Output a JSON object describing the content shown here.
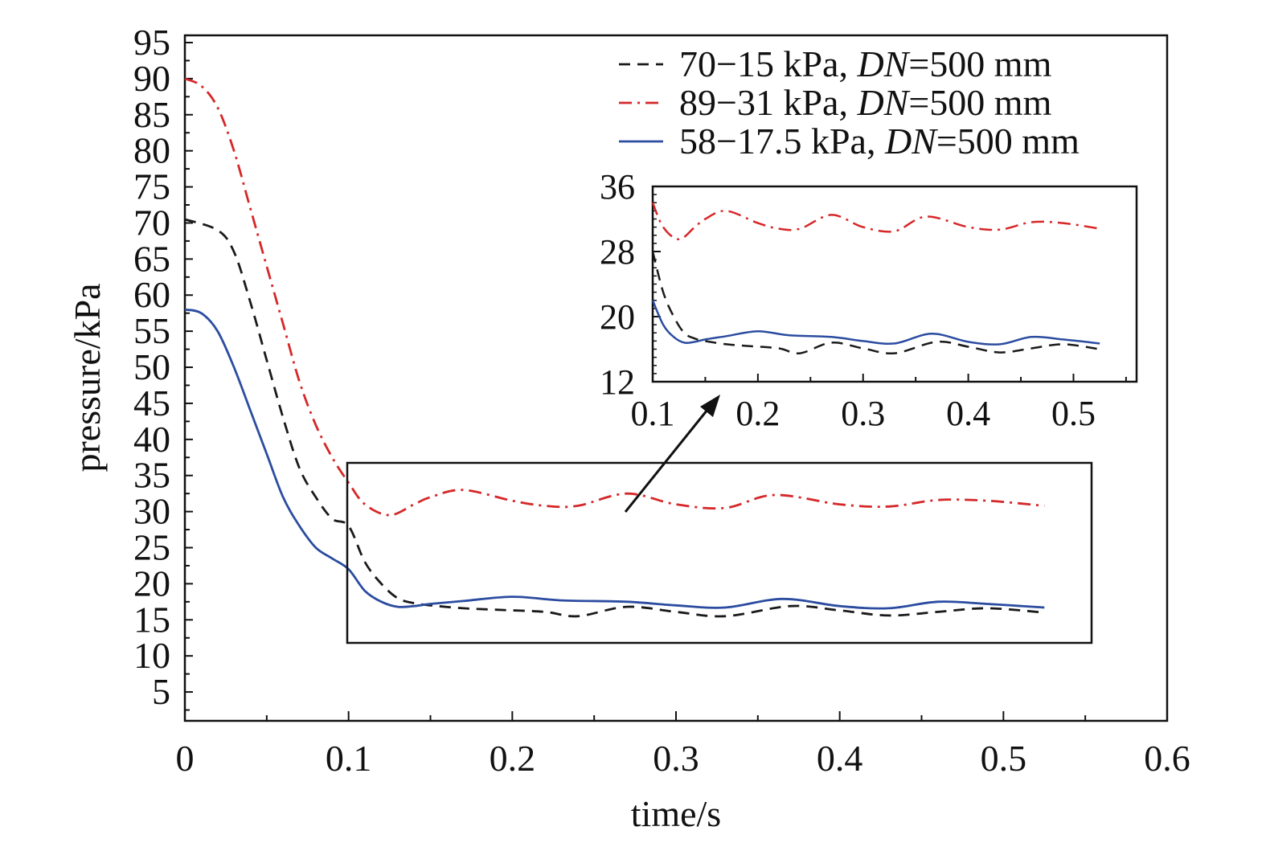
{
  "chart_data": {
    "type": "line",
    "xlabel": "time/s",
    "ylabel": "pressure/kPa",
    "xlim": [
      0,
      0.6
    ],
    "ylim": [
      1,
      96
    ],
    "xticks": [
      "0",
      "0.1",
      "0.2",
      "0.3",
      "0.4",
      "0.5",
      "0.6"
    ],
    "yticks": [
      "5",
      "10",
      "15",
      "20",
      "25",
      "30",
      "35",
      "40",
      "45",
      "50",
      "55",
      "60",
      "65",
      "70",
      "75",
      "80",
      "85",
      "90",
      "95"
    ],
    "legend_position": "top-right",
    "grid": false,
    "series": [
      {
        "name": "70−15 kPa, ",
        "name_italic": "DN",
        "name_suffix": "=500 mm",
        "color": "#1a1a1a",
        "dash": "dashed",
        "points": [
          [
            0,
            70.5
          ],
          [
            0.02,
            69
          ],
          [
            0.03,
            66
          ],
          [
            0.04,
            59
          ],
          [
            0.05,
            51
          ],
          [
            0.06,
            43
          ],
          [
            0.07,
            36
          ],
          [
            0.08,
            32
          ],
          [
            0.09,
            29
          ],
          [
            0.1,
            28
          ],
          [
            0.11,
            23
          ],
          [
            0.12,
            20
          ],
          [
            0.13,
            18
          ],
          [
            0.14,
            17.3
          ],
          [
            0.15,
            17
          ],
          [
            0.17,
            16.6
          ],
          [
            0.19,
            16.4
          ],
          [
            0.22,
            16.1
          ],
          [
            0.24,
            15.5
          ],
          [
            0.27,
            16.8
          ],
          [
            0.3,
            16.1
          ],
          [
            0.33,
            15.5
          ],
          [
            0.37,
            16.9
          ],
          [
            0.4,
            16.3
          ],
          [
            0.43,
            15.6
          ],
          [
            0.46,
            16.1
          ],
          [
            0.49,
            16.6
          ],
          [
            0.525,
            16
          ]
        ]
      },
      {
        "name": "89−31 kPa, ",
        "name_italic": "DN",
        "name_suffix": "=500 mm",
        "color": "#d62728",
        "dash": "dashdot",
        "points": [
          [
            0,
            90
          ],
          [
            0.01,
            89
          ],
          [
            0.02,
            86
          ],
          [
            0.03,
            80
          ],
          [
            0.04,
            72
          ],
          [
            0.05,
            64
          ],
          [
            0.06,
            56
          ],
          [
            0.07,
            48
          ],
          [
            0.08,
            42
          ],
          [
            0.09,
            37.5
          ],
          [
            0.1,
            34
          ],
          [
            0.11,
            31
          ],
          [
            0.125,
            29.5
          ],
          [
            0.14,
            31
          ],
          [
            0.15,
            32
          ],
          [
            0.17,
            33
          ],
          [
            0.2,
            31.5
          ],
          [
            0.22,
            30.8
          ],
          [
            0.24,
            30.8
          ],
          [
            0.27,
            32.5
          ],
          [
            0.3,
            31
          ],
          [
            0.33,
            30.5
          ],
          [
            0.36,
            32.3
          ],
          [
            0.4,
            31
          ],
          [
            0.43,
            30.7
          ],
          [
            0.46,
            31.6
          ],
          [
            0.49,
            31.5
          ],
          [
            0.525,
            30.8
          ]
        ]
      },
      {
        "name": "58−17.5 kPa, ",
        "name_italic": "DN",
        "name_suffix": "=500 mm",
        "color": "#2b4ca0",
        "dash": "solid",
        "points": [
          [
            0,
            58
          ],
          [
            0.01,
            57.5
          ],
          [
            0.02,
            55
          ],
          [
            0.03,
            50
          ],
          [
            0.04,
            44
          ],
          [
            0.05,
            38
          ],
          [
            0.06,
            32
          ],
          [
            0.07,
            28
          ],
          [
            0.08,
            25
          ],
          [
            0.09,
            23.5
          ],
          [
            0.1,
            22
          ],
          [
            0.11,
            19
          ],
          [
            0.12,
            17.5
          ],
          [
            0.13,
            16.8
          ],
          [
            0.14,
            16.9
          ],
          [
            0.15,
            17.2
          ],
          [
            0.17,
            17.6
          ],
          [
            0.2,
            18.2
          ],
          [
            0.23,
            17.7
          ],
          [
            0.27,
            17.5
          ],
          [
            0.3,
            17
          ],
          [
            0.33,
            16.7
          ],
          [
            0.365,
            17.9
          ],
          [
            0.4,
            16.9
          ],
          [
            0.43,
            16.6
          ],
          [
            0.46,
            17.5
          ],
          [
            0.49,
            17.2
          ],
          [
            0.525,
            16.7
          ]
        ]
      }
    ],
    "inset": {
      "xlim": [
        0.1,
        0.56
      ],
      "ylim": [
        12,
        36
      ],
      "xticks": [
        "0.1",
        "0.2",
        "0.3",
        "0.4",
        "0.5"
      ],
      "yticks": [
        "12",
        "20",
        "28",
        "36"
      ]
    }
  }
}
